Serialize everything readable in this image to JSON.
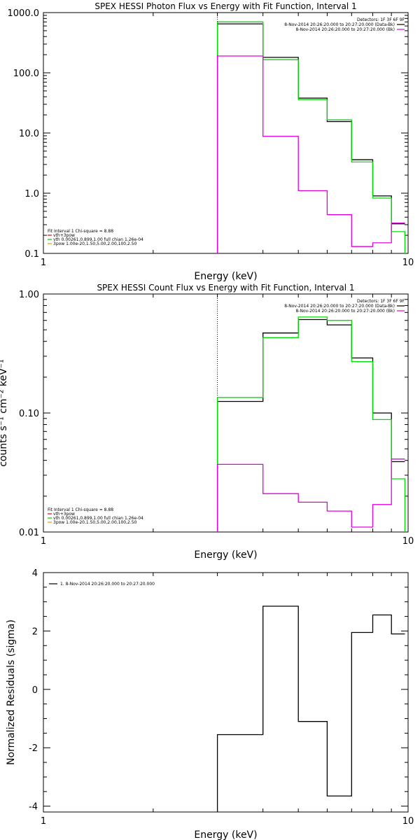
{
  "chart_data": [
    {
      "type": "line",
      "title": "SPEX HESSI Photon Flux vs Energy with Fit Function, Interval 1",
      "xlabel": "Energy (keV)",
      "ylabel": "",
      "xscale": "log",
      "yscale": "log",
      "xlim": [
        1,
        10
      ],
      "ylim": [
        0.1,
        1000
      ],
      "x_ticks": [
        "1",
        "10"
      ],
      "y_ticks": [
        "0.1",
        "1.0",
        "10.0",
        "100.0",
        "1000.0"
      ],
      "x_edges": [
        3,
        4,
        5,
        6,
        7,
        8,
        9,
        9.8
      ],
      "series": [
        {
          "name": "data",
          "color": "#000000",
          "values": [
            650,
            180,
            38,
            15.5,
            3.6,
            0.9,
            0.31
          ]
        },
        {
          "name": "fit",
          "color": "#00e000",
          "values": [
            700,
            165,
            36,
            16.5,
            3.3,
            0.83,
            0.23
          ]
        },
        {
          "name": "bk",
          "color": "#e000e0",
          "values": [
            190,
            8.8,
            1.1,
            0.44,
            0.13,
            0.15,
            0.32
          ]
        }
      ],
      "start_marker_x": 3,
      "legend": {
        "position": "top-right",
        "header": "Detectors: 1F 3F 6F 9F",
        "entries": [
          {
            "text": "8-Nov-2014 20:26:20.000 to 20:27:20.000 (Data-Bk)",
            "color": "#000000"
          },
          {
            "text": "8-Nov-2014 20:26:20.000 to 20:27:20.000 (Bk)",
            "color": "#e000e0"
          }
        ]
      },
      "fit_legend": {
        "position": "bottom-left",
        "header": "Fit Interval  1   Chi-square = 8.88",
        "entries": [
          {
            "text": "vth+3pow",
            "color": "#e00000"
          },
          {
            "text": "vth 0.00261,0.899,1.00  full chian 1.26e-04",
            "color": "#00d000"
          },
          {
            "text": "3pow 1.00e-20,1.50,5.00,2.00,100,2.50",
            "color": "#e0a000"
          }
        ]
      }
    },
    {
      "type": "line",
      "title": "SPEX HESSI Count Flux vs Energy with Fit Function, Interval 1",
      "xlabel": "Energy (keV)",
      "ylabel": "counts s⁻¹ cm⁻² keV⁻¹",
      "xscale": "log",
      "yscale": "log",
      "xlim": [
        1,
        10
      ],
      "ylim": [
        0.01,
        1
      ],
      "x_ticks": [
        "1",
        "10"
      ],
      "y_ticks": [
        "0.01",
        "0.10",
        "1.00"
      ],
      "x_edges": [
        3,
        4,
        5,
        6,
        7,
        8,
        9,
        9.8
      ],
      "series": [
        {
          "name": "data",
          "color": "#000000",
          "values": [
            0.125,
            0.47,
            0.61,
            0.55,
            0.29,
            0.1,
            0.039
          ]
        },
        {
          "name": "fit",
          "color": "#00e000",
          "values": [
            0.135,
            0.43,
            0.64,
            0.6,
            0.27,
            0.088,
            0.028
          ]
        },
        {
          "name": "bk",
          "color": "#e000e0",
          "values": [
            0.037,
            0.021,
            0.0178,
            0.015,
            0.011,
            0.017,
            0.041
          ]
        }
      ],
      "start_marker_x": 3,
      "legend": {
        "position": "top-right",
        "header": "Detectors: 1F 3F 6F 9F",
        "entries": [
          {
            "text": "8-Nov-2014 20:26:20.000 to 20:27:20.000 (Data-Bk)",
            "color": "#000000"
          },
          {
            "text": "8-Nov-2014 20:26:20.000 to 20:27:20.000 (Bk)",
            "color": "#e000e0"
          }
        ]
      },
      "fit_legend": {
        "position": "bottom-left",
        "header": "Fit Interval  1   Chi-square = 8.88",
        "entries": [
          {
            "text": "vth+3pow",
            "color": "#e00000"
          },
          {
            "text": "vth 0.00261,0.899,1.00  full chian 1.26e-04",
            "color": "#00d000"
          },
          {
            "text": "3pow 1.00e-20,1.50,5.00,2.00,100,2.50",
            "color": "#e0a000"
          }
        ]
      }
    },
    {
      "type": "line",
      "title": "",
      "xlabel": "Energy (keV)",
      "ylabel": "Normalized Residuals (sigma)",
      "xscale": "log",
      "yscale": "linear",
      "xlim": [
        1,
        10
      ],
      "ylim": [
        -4.2,
        4
      ],
      "x_ticks": [
        "1",
        "10"
      ],
      "y_ticks": [
        -4,
        -2,
        0,
        2,
        4
      ],
      "x_edges": [
        3,
        4,
        5,
        6,
        7,
        8,
        9,
        9.8
      ],
      "series": [
        {
          "name": "1.  8-Nov-2014 20:26:20.000 to 20:27:20.000",
          "color": "#000000",
          "values": [
            -1.55,
            2.85,
            -1.1,
            -3.65,
            1.95,
            2.55,
            1.9
          ]
        }
      ],
      "legend": {
        "position": "top-left",
        "entries": [
          {
            "text": "1.  8-Nov-2014 20:26:20.000 to 20:27:20.000",
            "color": "#000000"
          }
        ]
      }
    }
  ]
}
